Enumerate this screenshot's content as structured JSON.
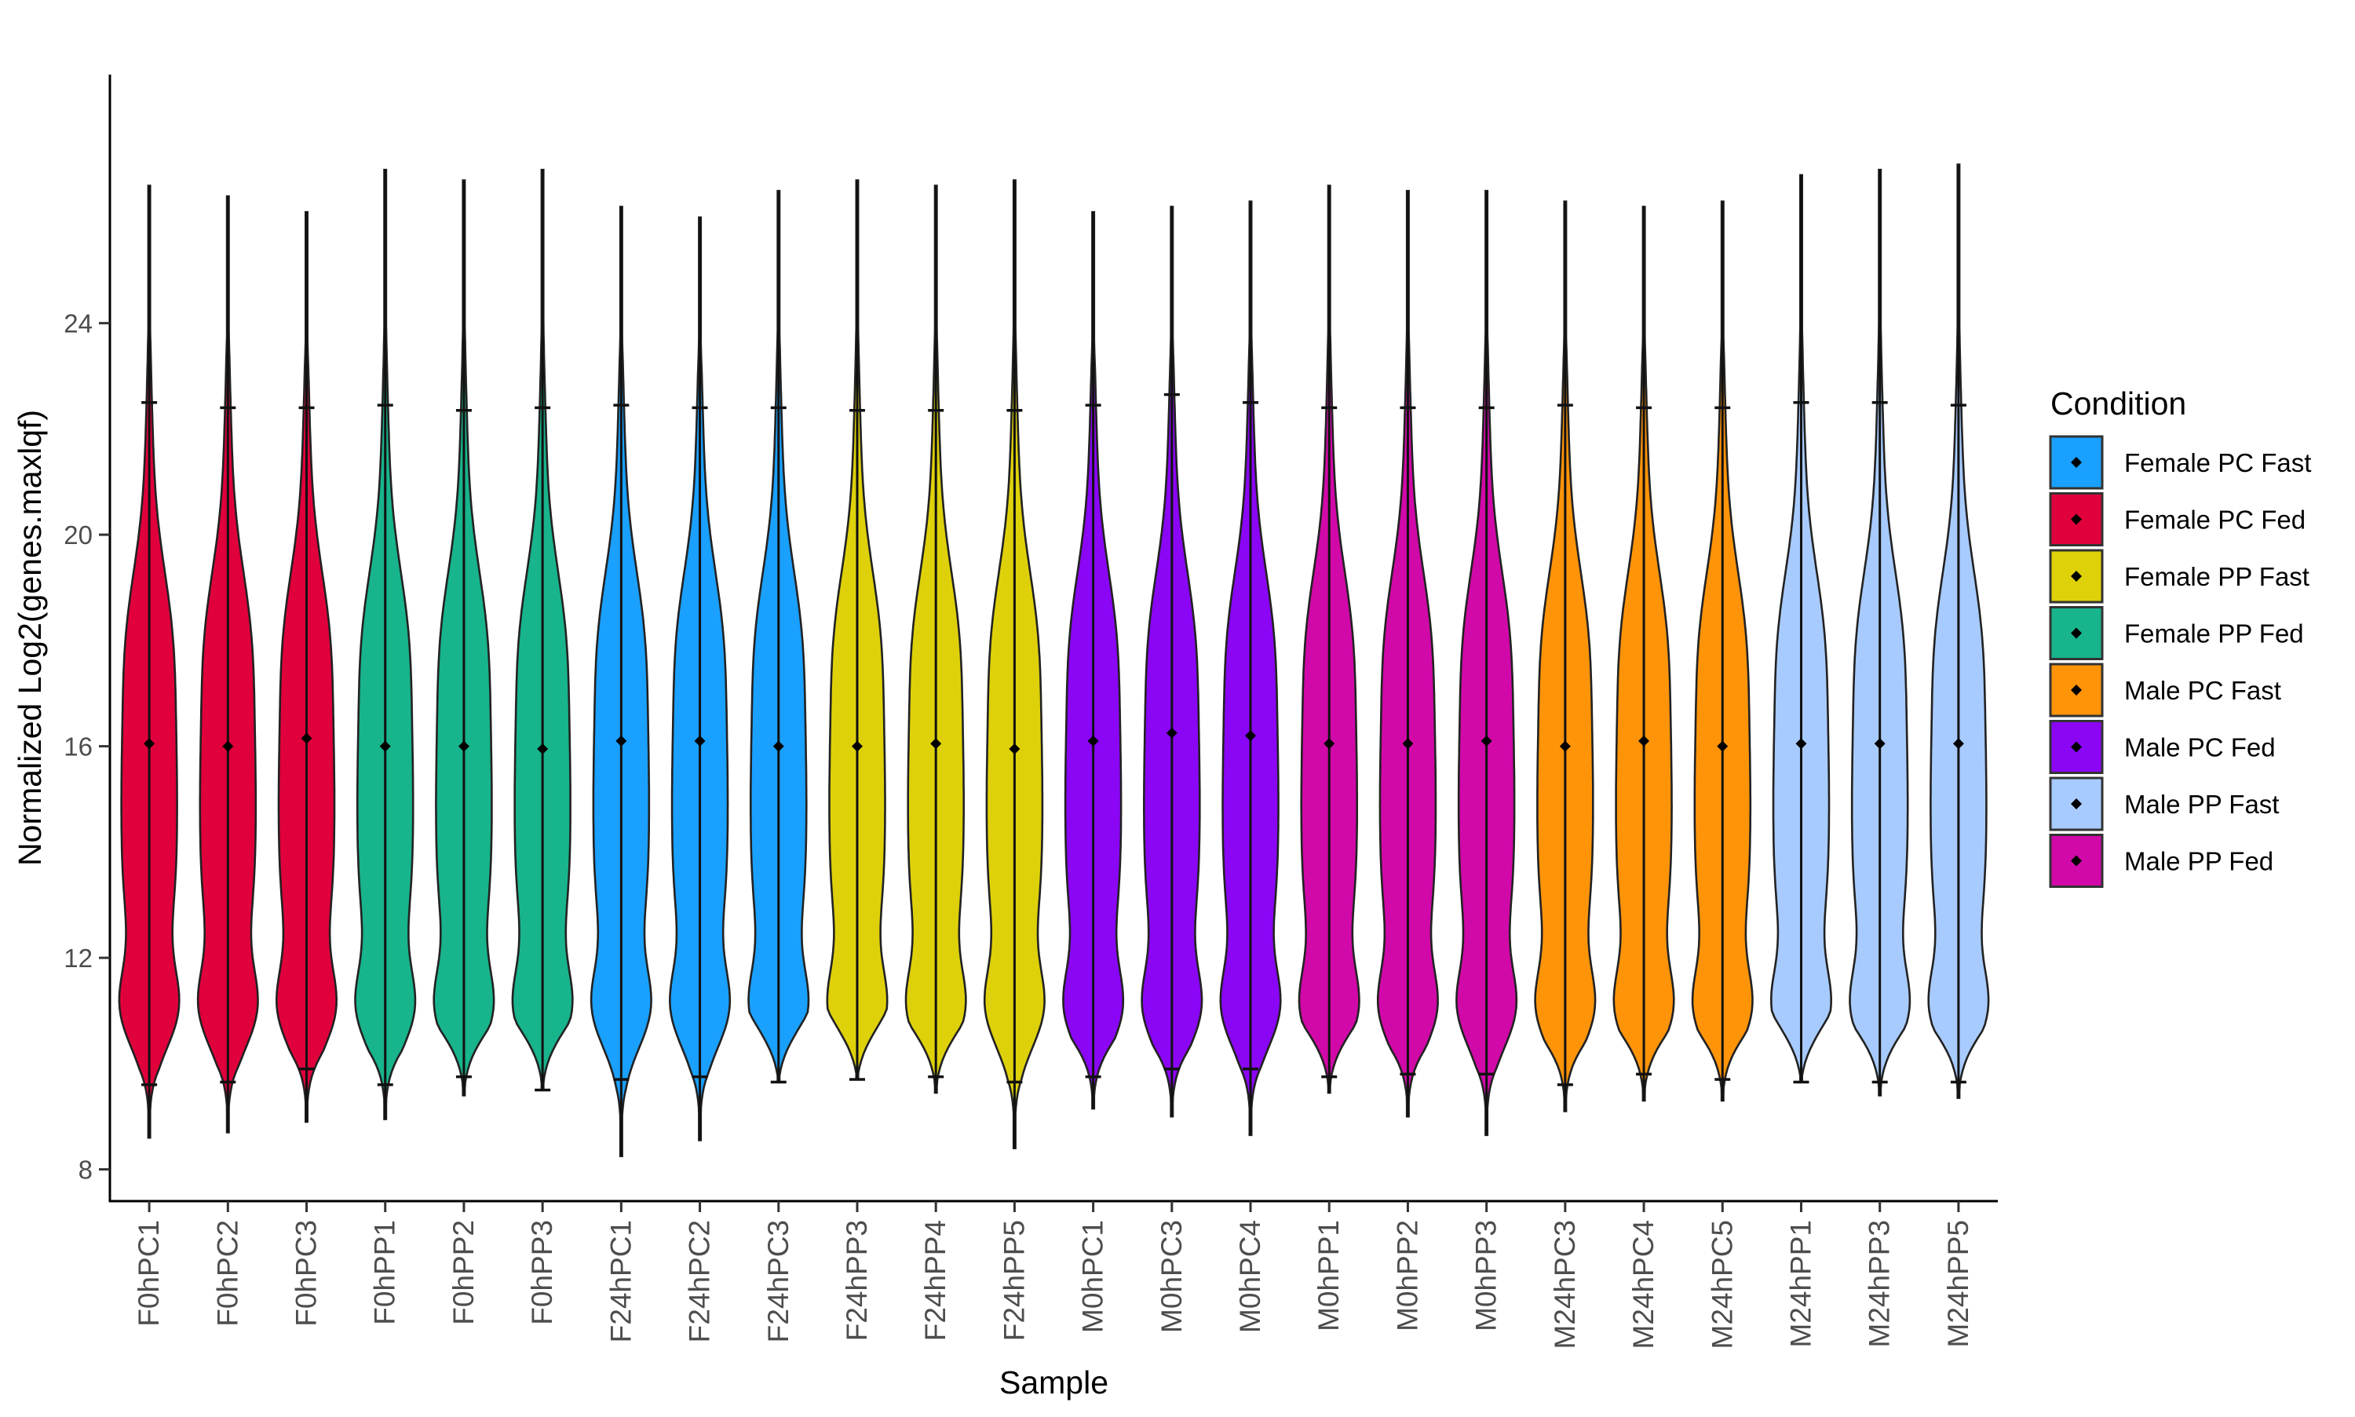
{
  "chart_data": {
    "type": "violin",
    "title": "",
    "xlabel": "Sample",
    "ylabel": "Normalized Log2(genes.maxlqf)",
    "ylim": [
      7.4,
      28.7
    ],
    "yticks": [
      8,
      12,
      16,
      20,
      24
    ],
    "grid": false,
    "legend": {
      "title": "Condition",
      "placement": "right",
      "items": [
        {
          "label": "Female PC Fast",
          "color": "#1AA0FF"
        },
        {
          "label": "Female PC Fed",
          "color": "#E0003C"
        },
        {
          "label": "Female PP Fast",
          "color": "#DED10A"
        },
        {
          "label": "Female PP Fed",
          "color": "#18B48C"
        },
        {
          "label": "Male PC Fast",
          "color": "#FF9409"
        },
        {
          "label": "Male PC Fed",
          "color": "#8A06F4"
        },
        {
          "label": "Male PP Fast",
          "color": "#A8CBFF"
        },
        {
          "label": "Male PP Fed",
          "color": "#D109A8"
        }
      ]
    },
    "samples": [
      {
        "name": "F0hPC1",
        "condition": "Female PC Fed",
        "min": 8.6,
        "max": 26.6,
        "lower": 9.6,
        "upper": 22.5,
        "mean": 16.05
      },
      {
        "name": "F0hPC2",
        "condition": "Female PC Fed",
        "min": 8.7,
        "max": 26.4,
        "lower": 9.65,
        "upper": 22.4,
        "mean": 16.0
      },
      {
        "name": "F0hPC3",
        "condition": "Female PC Fed",
        "min": 8.9,
        "max": 26.1,
        "lower": 9.9,
        "upper": 22.4,
        "mean": 16.15
      },
      {
        "name": "F0hPP1",
        "condition": "Female PP Fed",
        "min": 8.95,
        "max": 26.9,
        "lower": 9.6,
        "upper": 22.45,
        "mean": 16.0
      },
      {
        "name": "F0hPP2",
        "condition": "Female PP Fed",
        "min": 9.4,
        "max": 26.7,
        "lower": 9.75,
        "upper": 22.35,
        "mean": 16.0
      },
      {
        "name": "F0hPP3",
        "condition": "Female PP Fed",
        "min": 9.5,
        "max": 26.9,
        "lower": 9.5,
        "upper": 22.4,
        "mean": 15.95
      },
      {
        "name": "F24hPC1",
        "condition": "Female PC Fast",
        "min": 8.25,
        "max": 26.2,
        "lower": 9.7,
        "upper": 22.45,
        "mean": 16.1
      },
      {
        "name": "F24hPC2",
        "condition": "Female PC Fast",
        "min": 8.55,
        "max": 26.0,
        "lower": 9.75,
        "upper": 22.4,
        "mean": 16.1
      },
      {
        "name": "F24hPC3",
        "condition": "Female PC Fast",
        "min": 9.65,
        "max": 26.5,
        "lower": 9.65,
        "upper": 22.4,
        "mean": 16.0
      },
      {
        "name": "F24hPP3",
        "condition": "Female PP Fast",
        "min": 9.7,
        "max": 26.7,
        "lower": 9.7,
        "upper": 22.35,
        "mean": 16.0
      },
      {
        "name": "F24hPP4",
        "condition": "Female PP Fast",
        "min": 9.45,
        "max": 26.6,
        "lower": 9.75,
        "upper": 22.35,
        "mean": 16.05
      },
      {
        "name": "F24hPP5",
        "condition": "Female PP Fast",
        "min": 8.4,
        "max": 26.7,
        "lower": 9.65,
        "upper": 22.35,
        "mean": 15.95
      },
      {
        "name": "M0hPC1",
        "condition": "Male PC Fed",
        "min": 9.15,
        "max": 26.1,
        "lower": 9.75,
        "upper": 22.45,
        "mean": 16.1
      },
      {
        "name": "M0hPC3",
        "condition": "Male PC Fed",
        "min": 9.0,
        "max": 26.2,
        "lower": 9.9,
        "upper": 22.65,
        "mean": 16.25
      },
      {
        "name": "M0hPC4",
        "condition": "Male PC Fed",
        "min": 8.65,
        "max": 26.3,
        "lower": 9.9,
        "upper": 22.5,
        "mean": 16.2
      },
      {
        "name": "M0hPP1",
        "condition": "Male PP Fed",
        "min": 9.45,
        "max": 26.6,
        "lower": 9.75,
        "upper": 22.4,
        "mean": 16.05
      },
      {
        "name": "M0hPP2",
        "condition": "Male PP Fed",
        "min": 9.0,
        "max": 26.5,
        "lower": 9.8,
        "upper": 22.4,
        "mean": 16.05
      },
      {
        "name": "M0hPP3",
        "condition": "Male PP Fed",
        "min": 8.65,
        "max": 26.5,
        "lower": 9.8,
        "upper": 22.4,
        "mean": 16.1
      },
      {
        "name": "M24hPC3",
        "condition": "Male PC Fast",
        "min": 9.1,
        "max": 26.3,
        "lower": 9.6,
        "upper": 22.45,
        "mean": 16.0
      },
      {
        "name": "M24hPC4",
        "condition": "Male PC Fast",
        "min": 9.3,
        "max": 26.2,
        "lower": 9.8,
        "upper": 22.4,
        "mean": 16.1
      },
      {
        "name": "M24hPC5",
        "condition": "Male PC Fast",
        "min": 9.3,
        "max": 26.3,
        "lower": 9.7,
        "upper": 22.4,
        "mean": 16.0
      },
      {
        "name": "M24hPP1",
        "condition": "Male PP Fast",
        "min": 9.65,
        "max": 26.8,
        "lower": 9.65,
        "upper": 22.5,
        "mean": 16.05
      },
      {
        "name": "M24hPP3",
        "condition": "Male PP Fast",
        "min": 9.4,
        "max": 26.9,
        "lower": 9.65,
        "upper": 22.5,
        "mean": 16.05
      },
      {
        "name": "M24hPP5",
        "condition": "Male PP Fast",
        "min": 9.35,
        "max": 27.0,
        "lower": 9.65,
        "upper": 22.45,
        "mean": 16.05
      }
    ]
  }
}
